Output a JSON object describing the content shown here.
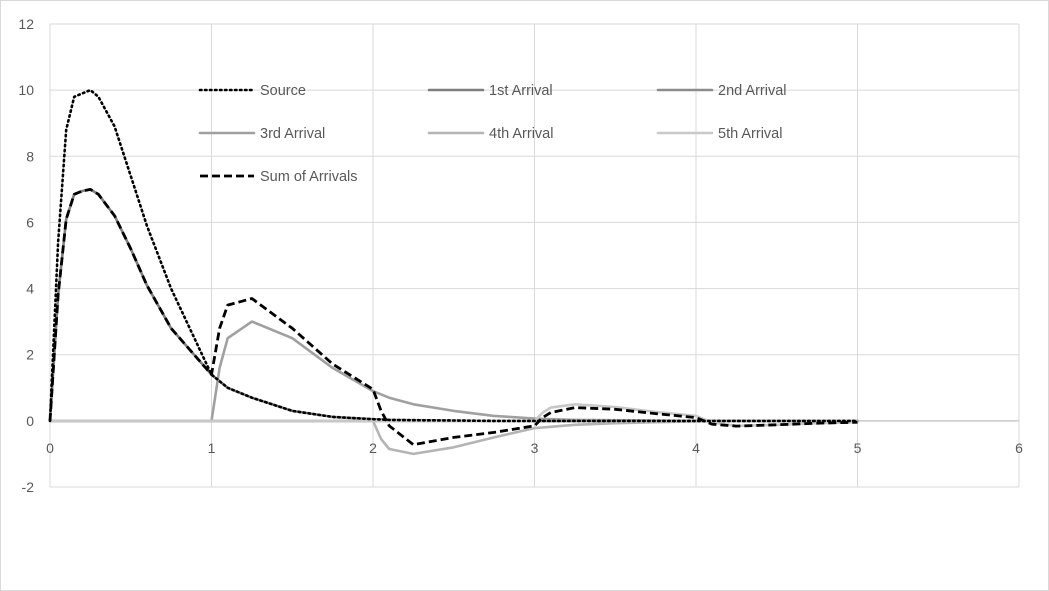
{
  "chart_data": {
    "type": "line",
    "title": "",
    "xlabel": "",
    "ylabel": "",
    "xlim": [
      0,
      6
    ],
    "ylim": [
      -2,
      12
    ],
    "x_ticks": [
      "0",
      "1",
      "2",
      "3",
      "4",
      "5",
      "6"
    ],
    "y_ticks": [
      "12",
      "10",
      "8",
      "6",
      "4",
      "2",
      "0",
      "-2"
    ],
    "grid": true,
    "legend_position": "inside-top",
    "x": [
      0,
      0.05,
      0.1,
      0.15,
      0.2,
      0.25,
      0.3,
      0.4,
      0.5,
      0.6,
      0.75,
      1.0,
      1.05,
      1.1,
      1.25,
      1.5,
      1.75,
      2.0,
      2.05,
      2.1,
      2.25,
      2.5,
      2.75,
      3.0,
      3.05,
      3.1,
      3.25,
      3.5,
      3.75,
      4.0,
      4.05,
      4.1,
      4.25,
      4.5,
      4.75,
      5.0
    ],
    "series": [
      {
        "name": "Source",
        "style": "dotted",
        "color": "#000000",
        "values": [
          0,
          5.4,
          8.8,
          9.8,
          9.9,
          10,
          9.8,
          8.9,
          7.4,
          5.9,
          4.0,
          1.4,
          1.2,
          1.0,
          0.7,
          0.3,
          0.12,
          0.05,
          0.04,
          0.03,
          0.02,
          0.01,
          0,
          0,
          0,
          0,
          0,
          0,
          0,
          0,
          0,
          0,
          0,
          0,
          0,
          0
        ]
      },
      {
        "name": "1st Arrival",
        "style": "solid",
        "color": "#7f7f7f",
        "values": [
          0,
          3.8,
          6.1,
          6.85,
          6.95,
          7.0,
          6.85,
          6.2,
          5.2,
          4.1,
          2.8,
          1.4,
          1.2,
          1.0,
          0.7,
          0.3,
          0.12,
          0.05,
          0.04,
          0.03,
          0.02,
          0.01,
          0,
          0,
          0,
          0,
          0,
          0,
          0,
          0,
          0,
          0,
          0,
          0,
          0,
          0
        ]
      },
      {
        "name": "2nd Arrival",
        "style": "solid",
        "color": "#8c8c8c",
        "values": [
          0,
          0,
          0,
          0,
          0,
          0,
          0,
          0,
          0,
          0,
          0,
          0,
          0,
          0,
          0,
          0,
          0,
          0,
          0,
          0,
          0,
          0,
          0,
          0,
          0,
          0,
          0,
          0,
          0,
          0,
          0,
          0,
          0,
          0,
          0,
          0
        ]
      },
      {
        "name": "3rd Arrival",
        "style": "solid",
        "color": "#a0a0a0",
        "values": [
          0,
          0,
          0,
          0,
          0,
          0,
          0,
          0,
          0,
          0,
          0,
          0,
          1.6,
          2.5,
          3.0,
          2.5,
          1.6,
          0.9,
          0.8,
          0.7,
          0.5,
          0.3,
          0.15,
          0.07,
          0.06,
          0.05,
          0.03,
          0.02,
          0.01,
          0,
          0,
          0,
          0,
          0,
          0,
          0
        ]
      },
      {
        "name": "4th Arrival",
        "style": "solid",
        "color": "#b4b4b4",
        "values": [
          0,
          0,
          0,
          0,
          0,
          0,
          0,
          0,
          0,
          0,
          0,
          0,
          0,
          0,
          0,
          0,
          0,
          0,
          -0.55,
          -0.85,
          -1.0,
          -0.8,
          -0.5,
          -0.22,
          -0.2,
          -0.18,
          -0.12,
          -0.07,
          -0.04,
          -0.02,
          -0.02,
          -0.01,
          -0.01,
          0,
          0,
          0
        ]
      },
      {
        "name": "5th Arrival",
        "style": "solid",
        "color": "#c8c8c8",
        "values": [
          0,
          0,
          0,
          0,
          0,
          0,
          0,
          0,
          0,
          0,
          0,
          0,
          0,
          0,
          0,
          0,
          0,
          0,
          0,
          0,
          0,
          0,
          0,
          0,
          0.25,
          0.4,
          0.5,
          0.42,
          0.27,
          0.15,
          0.05,
          -0.05,
          -0.15,
          -0.12,
          -0.07,
          -0.04
        ]
      },
      {
        "name": "Sum of Arrivals",
        "style": "dashed",
        "color": "#000000",
        "values": [
          0,
          3.8,
          6.1,
          6.85,
          6.95,
          7.0,
          6.85,
          6.2,
          5.2,
          4.1,
          2.8,
          1.4,
          2.8,
          3.5,
          3.7,
          2.8,
          1.72,
          0.95,
          0.3,
          -0.15,
          -0.72,
          -0.5,
          -0.35,
          -0.15,
          0.1,
          0.25,
          0.4,
          0.35,
          0.22,
          0.1,
          0.0,
          -0.1,
          -0.16,
          -0.12,
          -0.07,
          -0.04
        ]
      }
    ]
  }
}
